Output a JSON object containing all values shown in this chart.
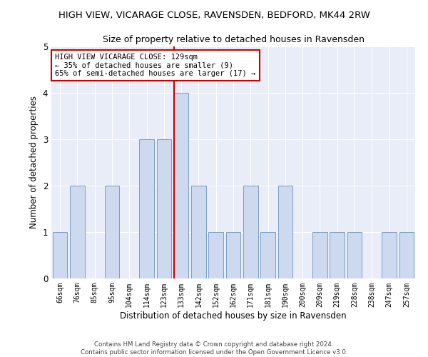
{
  "title": "HIGH VIEW, VICARAGE CLOSE, RAVENSDEN, BEDFORD, MK44 2RW",
  "subtitle": "Size of property relative to detached houses in Ravensden",
  "xlabel": "Distribution of detached houses by size in Ravensden",
  "ylabel": "Number of detached properties",
  "categories": [
    "66sqm",
    "76sqm",
    "85sqm",
    "95sqm",
    "104sqm",
    "114sqm",
    "123sqm",
    "133sqm",
    "142sqm",
    "152sqm",
    "162sqm",
    "171sqm",
    "181sqm",
    "190sqm",
    "200sqm",
    "209sqm",
    "219sqm",
    "228sqm",
    "238sqm",
    "247sqm",
    "257sqm"
  ],
  "values": [
    1,
    2,
    0,
    2,
    0,
    3,
    3,
    4,
    2,
    1,
    1,
    2,
    1,
    2,
    0,
    1,
    1,
    1,
    0,
    1,
    1
  ],
  "bar_color": "#ccd9ee",
  "bar_edge_color": "#7a9fc4",
  "highlight_index": 7,
  "highlight_line_color": "#cc0000",
  "annotation_text": "HIGH VIEW VICARAGE CLOSE: 129sqm\n← 35% of detached houses are smaller (9)\n65% of semi-detached houses are larger (17) →",
  "annotation_box_color": "#ffffff",
  "annotation_box_edge": "#cc0000",
  "ylim": [
    0,
    5
  ],
  "yticks": [
    0,
    1,
    2,
    3,
    4,
    5
  ],
  "footer1": "Contains HM Land Registry data © Crown copyright and database right 2024.",
  "footer2": "Contains public sector information licensed under the Open Government Licence v3.0.",
  "plot_bg_color": "#e8edf7"
}
